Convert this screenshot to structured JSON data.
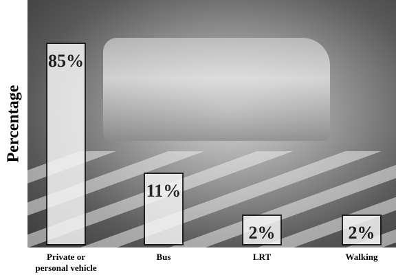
{
  "chart_data": {
    "type": "bar",
    "y_label": "Percentage",
    "categories": [
      "Private or personal vehicle",
      "Bus",
      "LRT",
      "Walking"
    ],
    "values": [
      85,
      11,
      2,
      2
    ],
    "value_labels": [
      "85%",
      "11%",
      "2%",
      "2%"
    ],
    "color": "#f4f4f4",
    "border_color": "#111111"
  }
}
